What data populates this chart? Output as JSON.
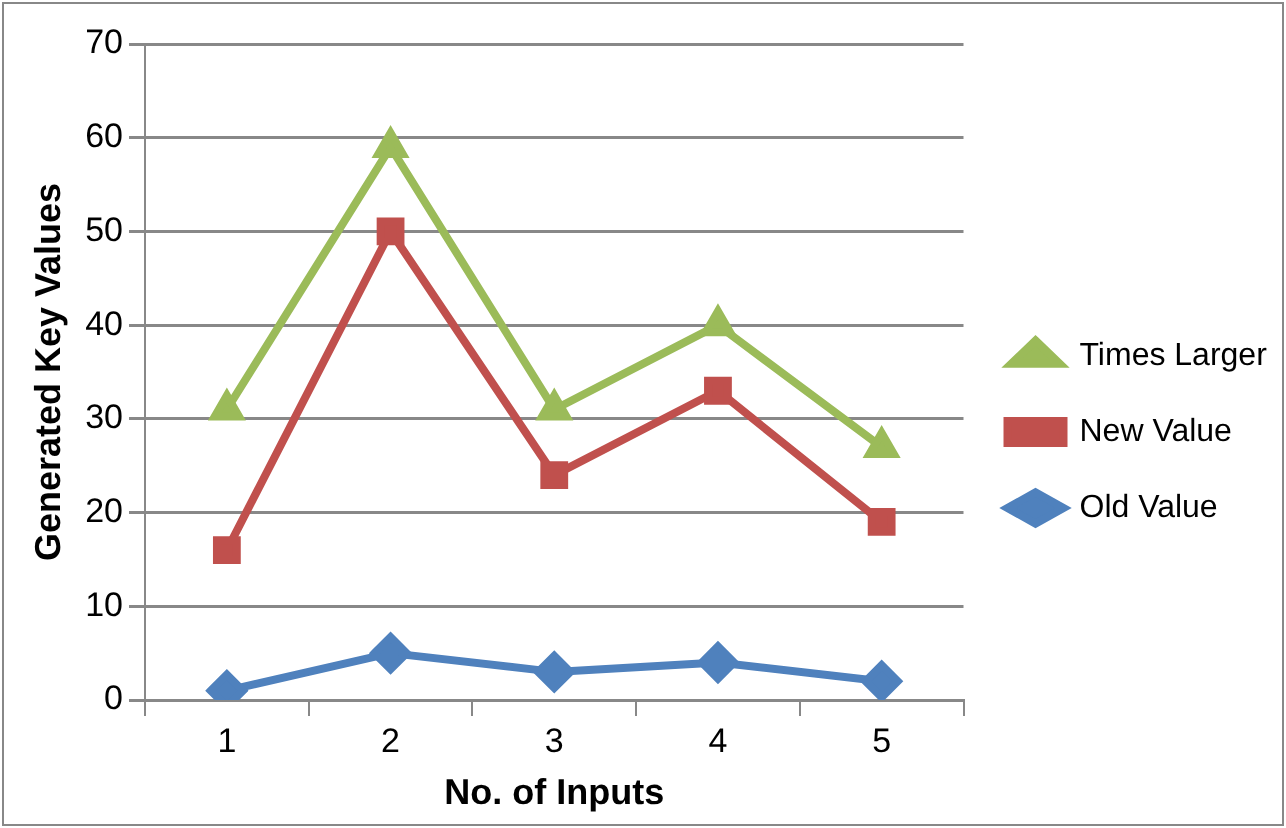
{
  "chart_data": {
    "type": "line",
    "xlabel": "No. of Inputs",
    "ylabel": "Generated Key Values",
    "categories": [
      "1",
      "2",
      "3",
      "4",
      "5"
    ],
    "series": [
      {
        "name": "Times Larger",
        "color": "#9bbb59",
        "marker": "triangle",
        "values": [
          31,
          59,
          31,
          40,
          27
        ]
      },
      {
        "name": "New Value",
        "color": "#c0504d",
        "marker": "square",
        "values": [
          16,
          50,
          24,
          33,
          19
        ]
      },
      {
        "name": "Old Value",
        "color": "#4f81bd",
        "marker": "diamond",
        "values": [
          1,
          5,
          3,
          4,
          2
        ]
      }
    ],
    "ylim": [
      0,
      70
    ],
    "yticks": [
      0,
      10,
      20,
      30,
      40,
      50,
      60,
      70
    ],
    "grid": "y",
    "legend": "right"
  }
}
